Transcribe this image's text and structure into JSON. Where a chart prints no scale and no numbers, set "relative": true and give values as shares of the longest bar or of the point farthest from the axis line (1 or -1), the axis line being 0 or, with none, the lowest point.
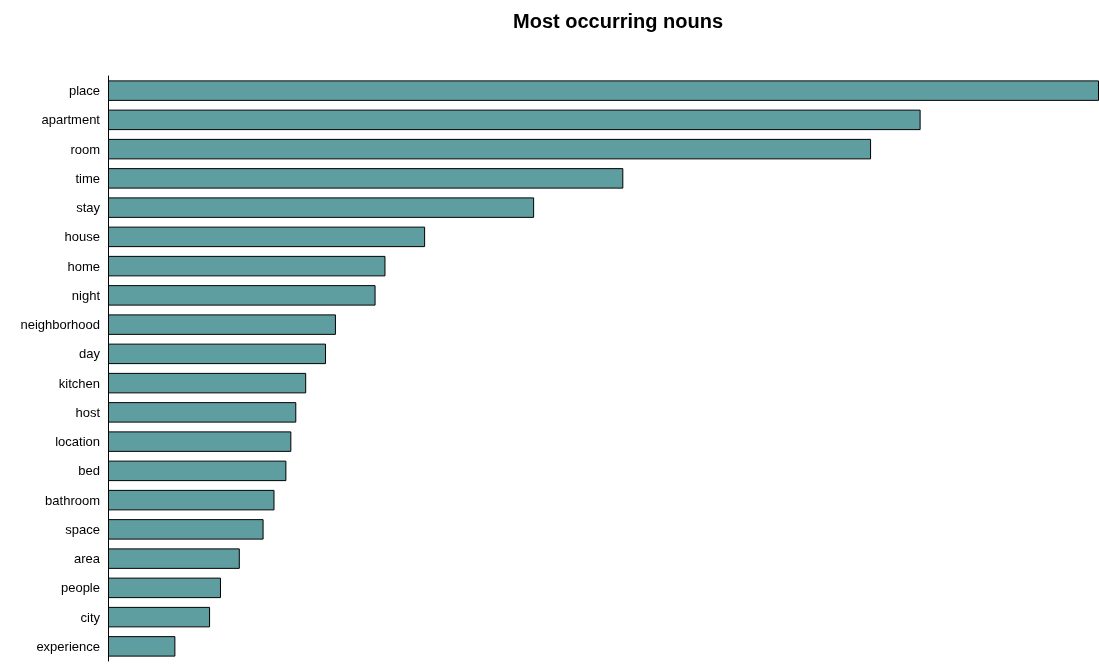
{
  "chart_data": {
    "type": "bar",
    "orientation": "horizontal",
    "relative": true,
    "title": "Most occurring nouns",
    "color": "#5f9ea0",
    "categories": [
      "place",
      "apartment",
      "room",
      "time",
      "stay",
      "house",
      "home",
      "night",
      "neighborhood",
      "day",
      "kitchen",
      "host",
      "location",
      "bed",
      "bathroom",
      "space",
      "area",
      "people",
      "city",
      "experience"
    ],
    "values": [
      1,
      0.82,
      0.77,
      0.52,
      0.43,
      0.32,
      0.28,
      0.27,
      0.23,
      0.22,
      0.2,
      0.19,
      0.185,
      0.18,
      0.168,
      0.157,
      0.133,
      0.114,
      0.103,
      0.068
    ]
  }
}
